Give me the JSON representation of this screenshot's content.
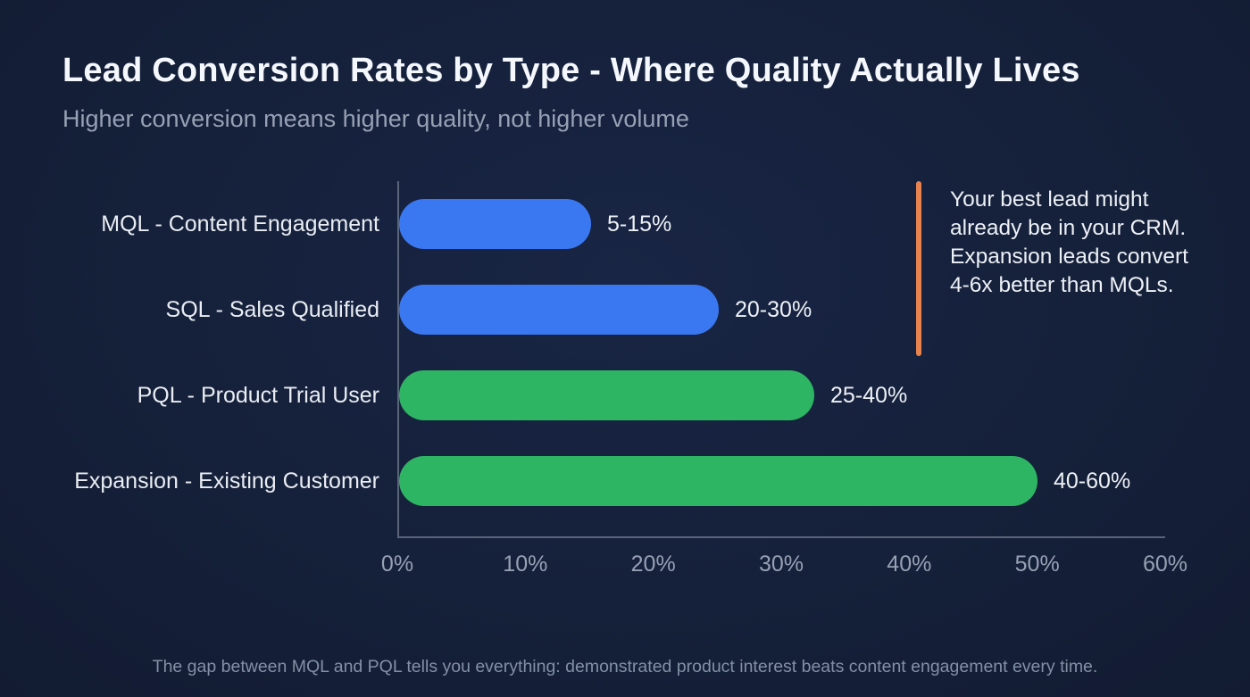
{
  "page": {
    "title": "Lead Conversion Rates by Type - Where Quality Actually Lives",
    "subtitle": "Higher conversion means higher quality, not higher volume",
    "footer": "The gap between MQL and PQL tells you everything: demonstrated product interest beats content engagement every time."
  },
  "annotation": {
    "accent_color": "#E8824E",
    "line1": "Your best lead might already be in your CRM.",
    "line2": "Expansion leads convert 4-6x better than MQLs."
  },
  "chart_data": {
    "type": "bar",
    "orientation": "horizontal",
    "title": "Lead Conversion Rates by Type - Where Quality Actually Lives",
    "subtitle": "Higher conversion means higher quality, not higher volume",
    "categories": [
      "MQL - Content Engagement",
      "SQL - Sales Qualified",
      "PQL - Product Trial User",
      "Expansion - Existing Customer"
    ],
    "values": [
      15,
      25,
      32.5,
      50
    ],
    "value_labels": [
      "5-15%",
      "20-30%",
      "25-40%",
      "40-60%"
    ],
    "bar_colors": [
      "#3A78F2",
      "#3A78F2",
      "#2EB563",
      "#2EB563"
    ],
    "xlabel": "",
    "ylabel": "",
    "xlim": [
      0,
      60
    ],
    "x_ticks": [
      "0%",
      "10%",
      "20%",
      "30%",
      "40%",
      "50%",
      "60%"
    ],
    "grid": false,
    "legend": false
  },
  "colors": {
    "background": "#16203A",
    "blue_bar": "#3A78F2",
    "green_bar": "#2EB563",
    "accent_orange": "#E8824E",
    "axis": "#5A6478",
    "title_text": "#F4F7FB",
    "subtitle_text": "#97A1B4",
    "tick_text": "#97A1B4",
    "footer_text": "#8290A6"
  }
}
